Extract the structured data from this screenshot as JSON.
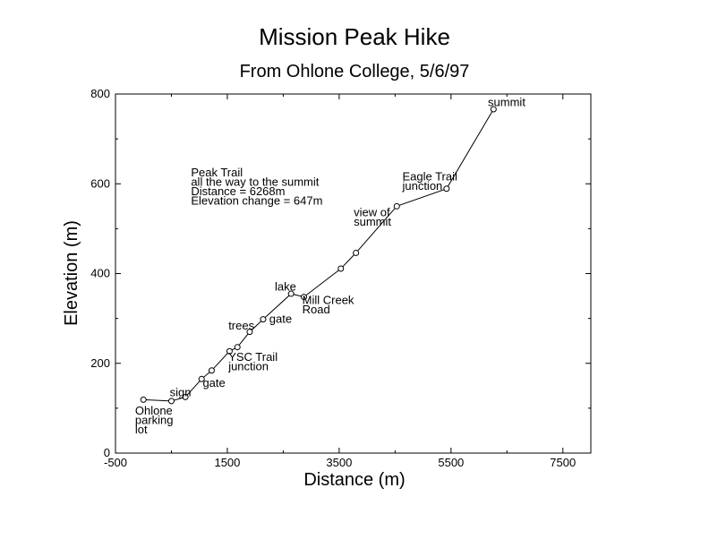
{
  "chart_data": {
    "type": "line",
    "title": "Mission Peak Hike",
    "subtitle": "From Ohlone College, 5/6/97",
    "xlabel": "Distance (m)",
    "ylabel": "Elevation (m)",
    "xlim": [
      -500,
      8000
    ],
    "ylim": [
      0,
      800
    ],
    "xticks": [
      "-500",
      "1500",
      "3500",
      "5500",
      "7500"
    ],
    "yticks": [
      "0",
      "200",
      "400",
      "600",
      "800"
    ],
    "grid": false,
    "series": [
      {
        "x": [
          0,
          500,
          750,
          1040,
          1220,
          1540,
          1680,
          1900,
          2140,
          2640,
          2870,
          3530,
          3800,
          4530,
          5420,
          6260
        ],
        "y": [
          119,
          116,
          125,
          165,
          184,
          227,
          236,
          270,
          298,
          355,
          348,
          411,
          446,
          550,
          589,
          766
        ]
      }
    ],
    "annotations": [
      {
        "lines": [
          "Ohlone",
          "parking",
          "lot"
        ],
        "x": -150,
        "y": 86
      },
      {
        "lines": [
          "sign"
        ],
        "x": 470,
        "y": 127
      },
      {
        "lines": [
          "gate"
        ],
        "x": 1060,
        "y": 148
      },
      {
        "lines": [
          "YSC Trail",
          "junction"
        ],
        "x": 1520,
        "y": 205
      },
      {
        "lines": [
          "trees"
        ],
        "x": 1520,
        "y": 275
      },
      {
        "lines": [
          "gate"
        ],
        "x": 2250,
        "y": 290
      },
      {
        "lines": [
          "lake"
        ],
        "x": 2350,
        "y": 362
      },
      {
        "lines": [
          "Mill Creek",
          "Road"
        ],
        "x": 2840,
        "y": 332
      },
      {
        "lines": [
          "view of",
          "summit"
        ],
        "x": 3760,
        "y": 528
      },
      {
        "lines": [
          "Eagle Trail",
          "junction"
        ],
        "x": 4630,
        "y": 607
      },
      {
        "lines": [
          "summit"
        ],
        "x": 6160,
        "y": 773
      },
      {
        "lines": [
          "Peak Trail",
          "all the way to the summit",
          "Distance = 6268m",
          "Elevation change = 647m"
        ],
        "x": 850,
        "y": 616
      }
    ]
  }
}
